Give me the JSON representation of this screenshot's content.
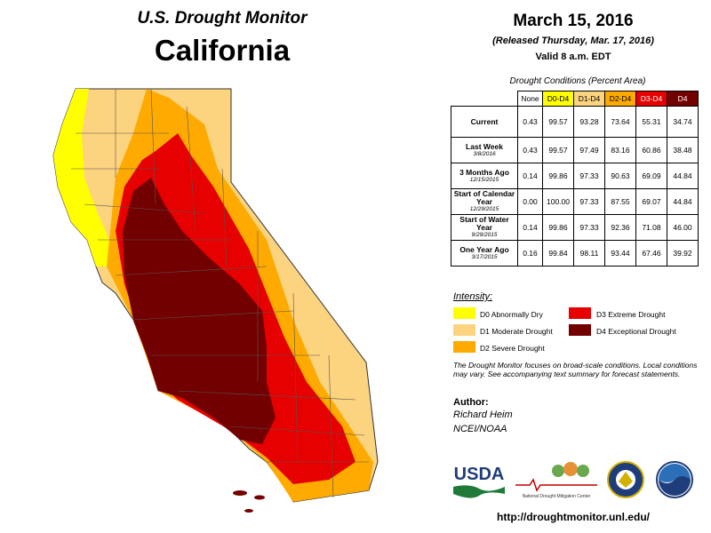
{
  "header": {
    "monitor": "U.S. Drought Monitor",
    "state": "California",
    "date": "March 15, 2016",
    "released": "(Released Thursday, Mar. 17, 2016)",
    "valid": "Valid 8 a.m. EDT"
  },
  "table": {
    "title": "Drought Conditions (Percent Area)",
    "columns": [
      "None",
      "D0-D4",
      "D1-D4",
      "D2-D4",
      "D3-D4",
      "D4"
    ],
    "rows": [
      {
        "label": "Current",
        "sub": "",
        "values": [
          "0.43",
          "99.57",
          "93.28",
          "73.64",
          "55.31",
          "34.74"
        ]
      },
      {
        "label": "Last Week",
        "sub": "3/8/2016",
        "values": [
          "0.43",
          "99.57",
          "97.49",
          "83.16",
          "60.86",
          "38.48"
        ]
      },
      {
        "label": "3 Months Ago",
        "sub": "12/15/2015",
        "values": [
          "0.14",
          "99.86",
          "97.33",
          "90.63",
          "69.09",
          "44.84"
        ]
      },
      {
        "label": "Start of Calendar Year",
        "sub": "12/29/2015",
        "values": [
          "0.00",
          "100.00",
          "97.33",
          "87.55",
          "69.07",
          "44.84"
        ]
      },
      {
        "label": "Start of Water Year",
        "sub": "9/29/2015",
        "values": [
          "0.14",
          "99.86",
          "97.33",
          "92.36",
          "71.08",
          "46.00"
        ]
      },
      {
        "label": "One Year Ago",
        "sub": "3/17/2015",
        "values": [
          "0.16",
          "99.84",
          "98.11",
          "93.44",
          "67.46",
          "39.92"
        ]
      }
    ]
  },
  "legend": {
    "title": "Intensity:",
    "items": [
      {
        "label": "D0 Abnormally Dry",
        "color": "#ffff00"
      },
      {
        "label": "D1 Moderate Drought",
        "color": "#fcd37f"
      },
      {
        "label": "D2 Severe Drought",
        "color": "#ffaa00"
      },
      {
        "label": "D3 Extreme Drought",
        "color": "#e60000"
      },
      {
        "label": "D4 Exceptional Drought",
        "color": "#730000"
      }
    ]
  },
  "note": "The Drought Monitor focuses on broad-scale conditions. Local conditions may vary. See accompanying text summary for forecast statements.",
  "author": {
    "heading": "Author:",
    "name": "Richard Heim",
    "org": "NCEI/NOAA"
  },
  "logos": {
    "usda": "USDA",
    "ndmc": "National Drought Mitigation Center"
  },
  "url": "http://droughtmonitor.unl.edu/"
}
